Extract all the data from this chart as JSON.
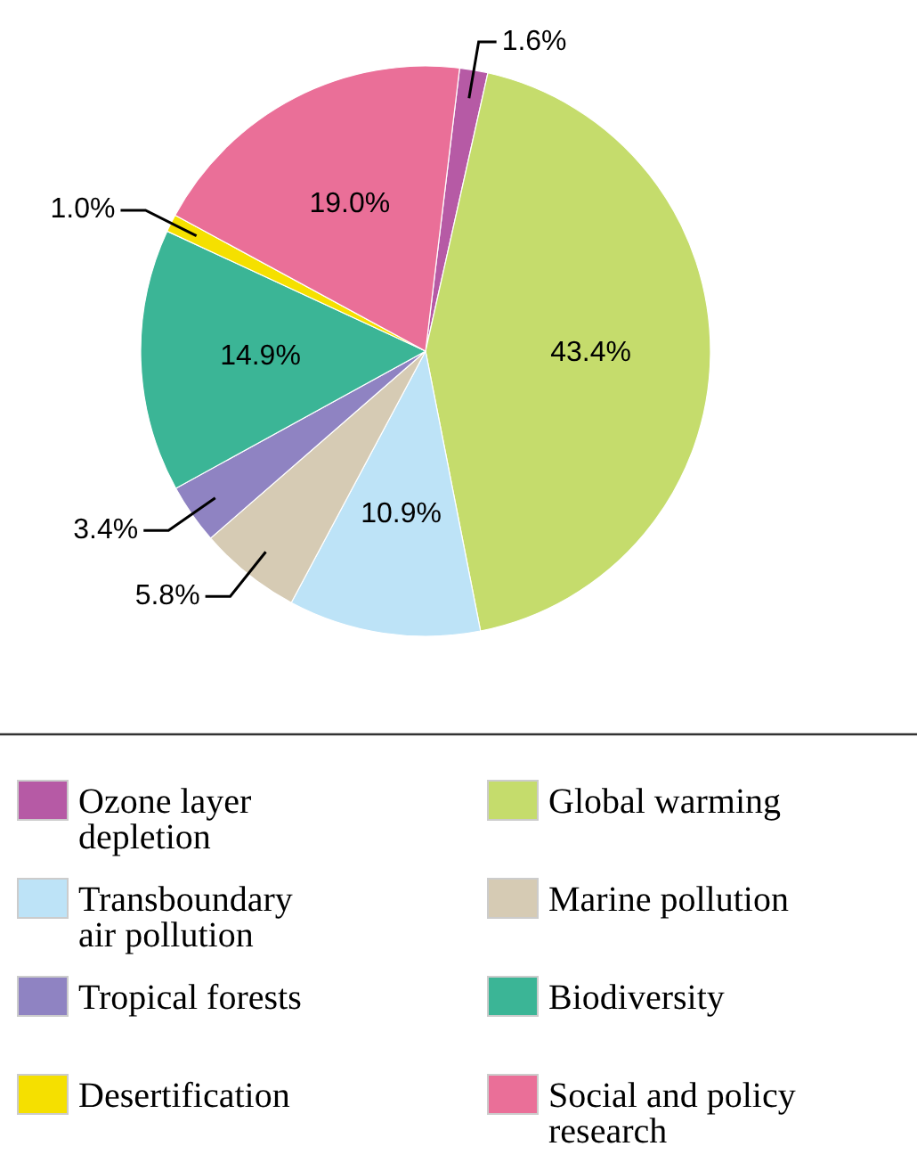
{
  "chart_data": {
    "type": "pie",
    "categories": [
      "Ozone layer depletion",
      "Global warming",
      "Transboundary air pollution",
      "Marine pollution",
      "Tropical forests",
      "Biodiversity",
      "Desertification",
      "Social and policy research"
    ],
    "values": [
      1.6,
      43.4,
      10.9,
      5.8,
      3.4,
      14.9,
      1.0,
      19.0
    ],
    "value_labels": [
      "1.6%",
      "43.4%",
      "10.9%",
      "5.8%",
      "3.4%",
      "14.9%",
      "1.0%",
      "19.0%"
    ],
    "colors": [
      "#b65aa5",
      "#c5dc6c",
      "#bde3f7",
      "#d6cbb4",
      "#8f83c2",
      "#3bb596",
      "#f5e000",
      "#ea6f98"
    ],
    "legend": "bottom"
  }
}
